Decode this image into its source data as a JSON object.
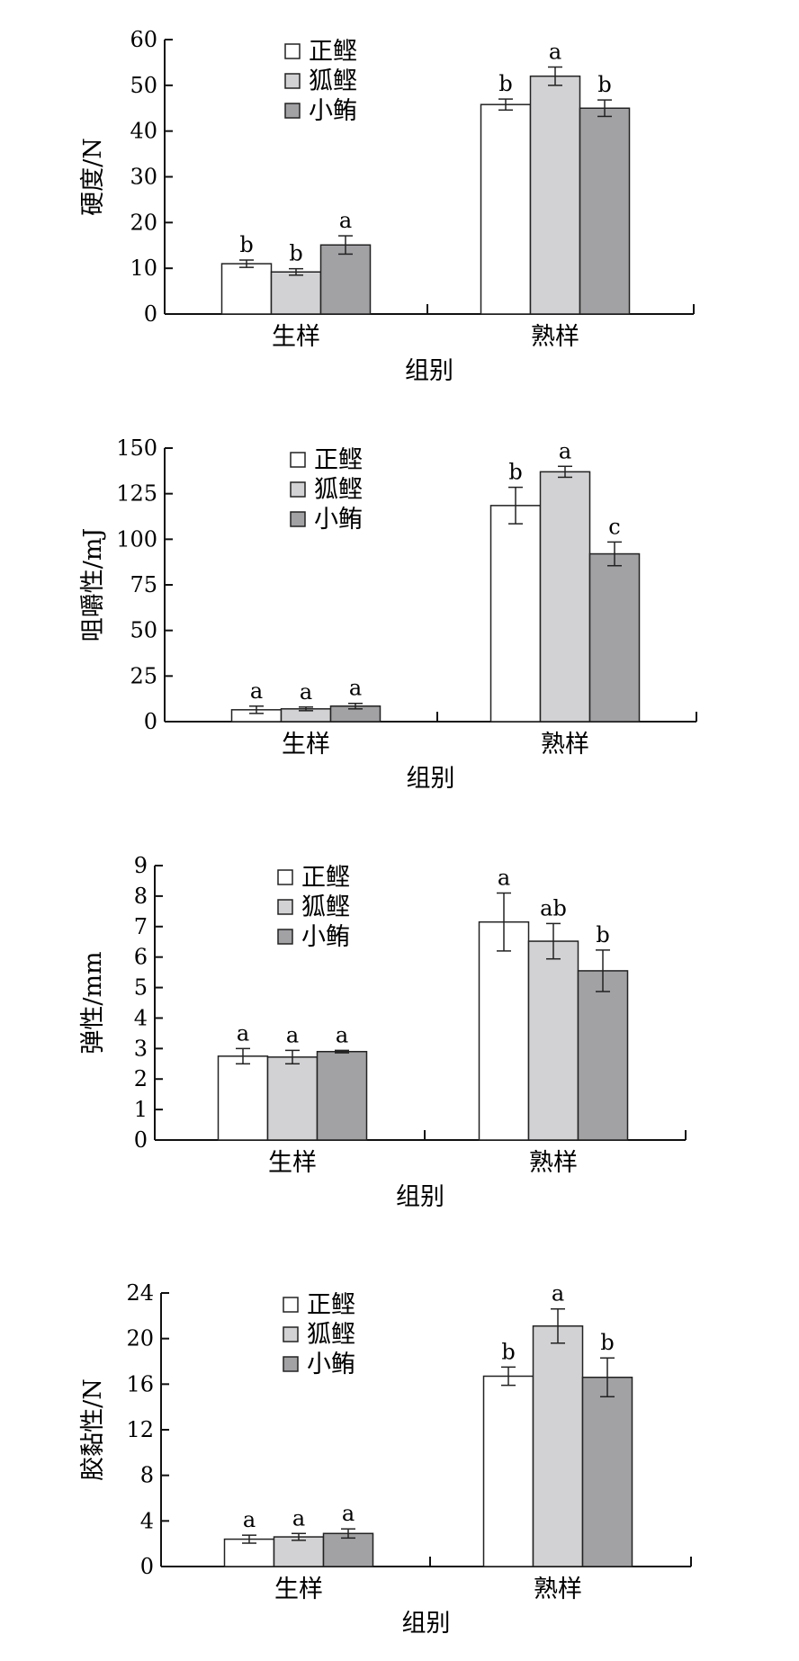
{
  "legend_colors": {
    "正鲣": "#ffffff",
    "狐鲣": "#d2d2d4",
    "小鲔": "#a2a2a5"
  },
  "chart_data": [
    {
      "type": "bar",
      "ylabel": "硬度/N",
      "xlabel": "组别",
      "categories": [
        "生样",
        "熟样"
      ],
      "ylim": [
        0,
        60
      ],
      "yticks": [
        0,
        10,
        20,
        30,
        40,
        50,
        60
      ],
      "series": [
        {
          "name": "正鲣",
          "values": [
            11.0,
            45.8
          ],
          "errors": [
            0.8,
            1.2
          ],
          "letters": [
            "b",
            "b"
          ]
        },
        {
          "name": "狐鲣",
          "values": [
            9.2,
            52.0
          ],
          "errors": [
            0.7,
            2.0
          ],
          "letters": [
            "b",
            "a"
          ]
        },
        {
          "name": "小鲔",
          "values": [
            15.1,
            45.0
          ],
          "errors": [
            2.0,
            1.8
          ],
          "letters": [
            "a",
            "b"
          ]
        }
      ]
    },
    {
      "type": "bar",
      "ylabel": "咀嚼性/mJ",
      "xlabel": "组别",
      "categories": [
        "生样",
        "熟样"
      ],
      "ylim": [
        0,
        150
      ],
      "yticks": [
        0,
        25,
        50,
        75,
        100,
        125,
        150
      ],
      "series": [
        {
          "name": "正鲣",
          "values": [
            6.5,
            118.5
          ],
          "errors": [
            2.0,
            10.0
          ],
          "letters": [
            "a",
            "b"
          ]
        },
        {
          "name": "狐鲣",
          "values": [
            7.0,
            137.0
          ],
          "errors": [
            1.0,
            3.0
          ],
          "letters": [
            "a",
            "a"
          ]
        },
        {
          "name": "小鲔",
          "values": [
            8.5,
            92.0
          ],
          "errors": [
            1.5,
            6.5
          ],
          "letters": [
            "a",
            "c"
          ]
        }
      ]
    },
    {
      "type": "bar",
      "ylabel": "弹性/mm",
      "xlabel": "组别",
      "categories": [
        "生样",
        "熟样"
      ],
      "ylim": [
        0,
        9
      ],
      "yticks": [
        0,
        1,
        2,
        3,
        4,
        5,
        6,
        7,
        8,
        9
      ],
      "series": [
        {
          "name": "正鲣",
          "values": [
            2.75,
            7.15
          ],
          "errors": [
            0.25,
            0.95
          ],
          "letters": [
            "a",
            "a"
          ]
        },
        {
          "name": "狐鲣",
          "values": [
            2.72,
            6.52
          ],
          "errors": [
            0.22,
            0.58
          ],
          "letters": [
            "a",
            "ab"
          ]
        },
        {
          "name": "小鲔",
          "values": [
            2.9,
            5.55
          ],
          "errors": [
            0.04,
            0.68
          ],
          "letters": [
            "a",
            "b"
          ]
        }
      ]
    },
    {
      "type": "bar",
      "ylabel": "胶黏性/N",
      "xlabel": "组别",
      "categories": [
        "生样",
        "熟样"
      ],
      "ylim": [
        0,
        24
      ],
      "yticks": [
        0,
        4,
        8,
        12,
        16,
        20,
        24
      ],
      "series": [
        {
          "name": "正鲣",
          "values": [
            2.4,
            16.7
          ],
          "errors": [
            0.35,
            0.8
          ],
          "letters": [
            "a",
            "b"
          ]
        },
        {
          "name": "狐鲣",
          "values": [
            2.6,
            21.1
          ],
          "errors": [
            0.3,
            1.5
          ],
          "letters": [
            "a",
            "a"
          ]
        },
        {
          "name": "小鲔",
          "values": [
            2.9,
            16.6
          ],
          "errors": [
            0.4,
            1.7
          ],
          "letters": [
            "a",
            "b"
          ]
        }
      ]
    }
  ]
}
